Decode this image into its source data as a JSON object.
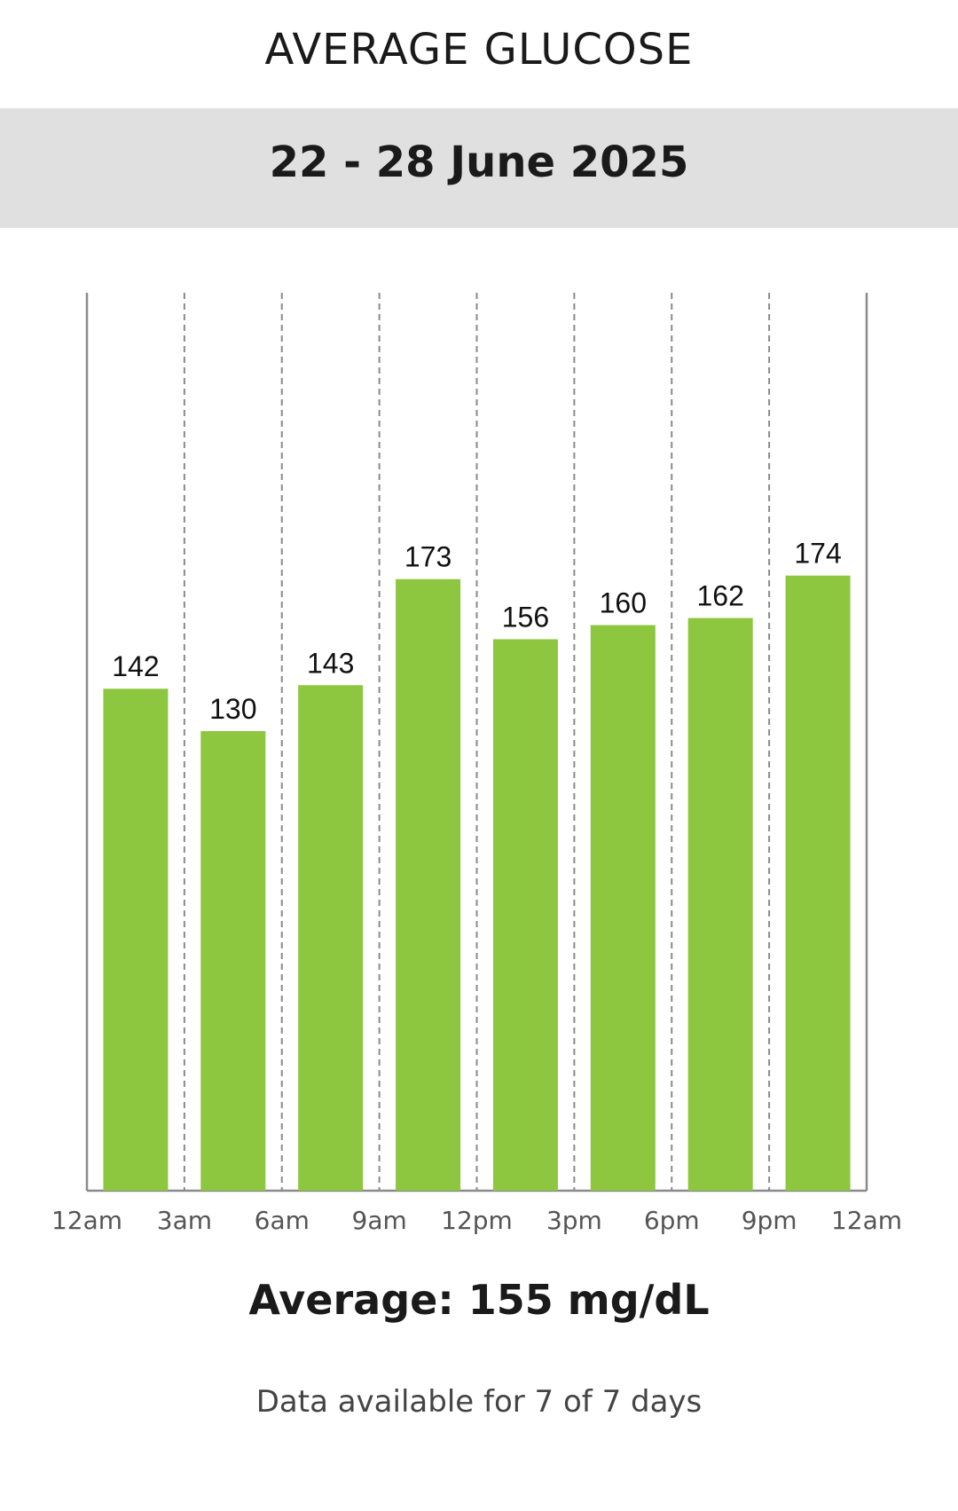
{
  "header": {
    "title": "AVERAGE GLUCOSE",
    "date_range": "22 - 28 June 2025"
  },
  "summary": {
    "average_text": "Average: 155 mg/dL",
    "availability_text": "Data available for 7 of 7 days"
  },
  "colors": {
    "bar": "#8dc63f",
    "date_band": "#e0e0e0",
    "gridline": "#8a8a8a",
    "tick_label": "#555555"
  },
  "chart_data": {
    "type": "bar",
    "title": "AVERAGE GLUCOSE",
    "xlabel": "",
    "ylabel": "",
    "x_ticks": [
      "12am",
      "3am",
      "6am",
      "9am",
      "12pm",
      "3pm",
      "6pm",
      "9pm",
      "12am"
    ],
    "categories": [
      "12am-3am",
      "3am-6am",
      "6am-9am",
      "9am-12pm",
      "12pm-3pm",
      "3pm-6pm",
      "6pm-9pm",
      "9pm-12am"
    ],
    "values": [
      142,
      130,
      143,
      173,
      156,
      160,
      162,
      174
    ],
    "ylim": [
      0,
      254
    ],
    "grid": "vertical dashed",
    "legend": "none"
  }
}
